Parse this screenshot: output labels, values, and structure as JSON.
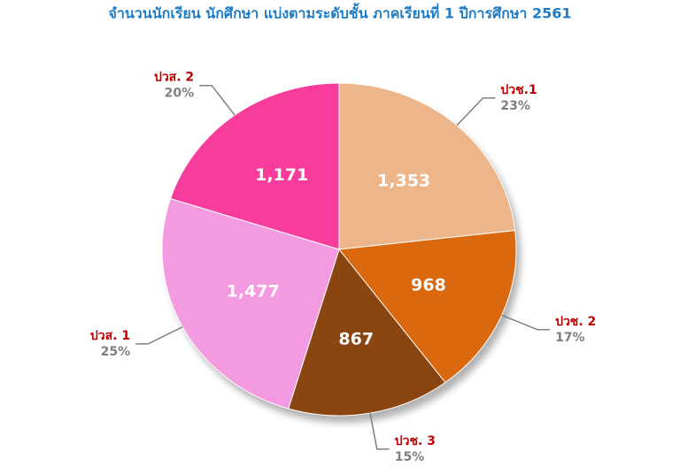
{
  "chart_data": {
    "type": "pie",
    "title": "จำนวนนักเรียน นักศึกษา แบ่งตามระดับชั้น ภาคเรียนที่ 1 ปีการศึกษา 2561",
    "categories": [
      "ปวช.1",
      "ปวช. 2",
      "ปวช. 3",
      "ปวส. 1",
      "ปวส. 2"
    ],
    "values": [
      1353,
      968,
      867,
      1477,
      1171
    ],
    "value_labels": [
      "1,353",
      "968",
      "867",
      "1,477",
      "1,171"
    ],
    "percent_labels": [
      "23%",
      "17%",
      "15%",
      "25%",
      "20%"
    ],
    "colors": [
      "#EDB68A",
      "#D9680E",
      "#8B4511",
      "#F49AE0",
      "#F83C9C"
    ]
  }
}
